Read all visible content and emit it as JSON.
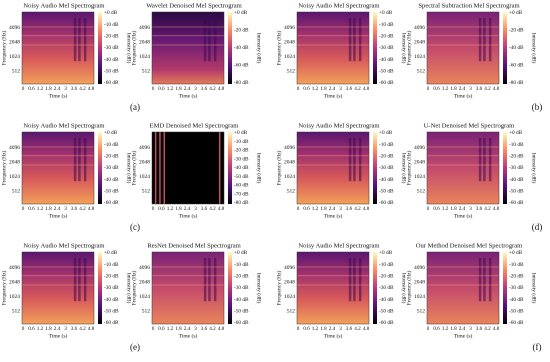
{
  "frequency_ticks": [
    "512",
    "1024",
    "2048",
    "4096"
  ],
  "time_ticks": [
    "0",
    "0.6",
    "1.2",
    "1.8",
    "2.4",
    "3",
    "3.6",
    "4.2",
    "4.8"
  ],
  "frequency_label": "Frequency (Hz)",
  "time_label": "Time (s)",
  "intensity_label": "Intensity (dB)",
  "figures": [
    {
      "label": "(a)",
      "panels": [
        {
          "title": "Noisy Audio Mel Spectrogram",
          "colorbar": [
            "+0 dB",
            "-10 dB",
            "-20 dB",
            "-30 dB",
            "-40 dB",
            "-50 dB",
            "-60 dB"
          ]
        },
        {
          "title": "Wavelet Denoised Mel Spectrogram",
          "colorbar": [
            "+0 dB",
            "-20 dB",
            "-40 dB",
            "-60 dB",
            "-80 dB"
          ]
        }
      ]
    },
    {
      "label": "(b)",
      "panels": [
        {
          "title": "Noisy Audio Mel Spectrogram",
          "colorbar": [
            "+0 dB",
            "-10 dB",
            "-20 dB",
            "-30 dB",
            "-40 dB",
            "-50 dB",
            "-60 dB"
          ]
        },
        {
          "title": "Spectral Subtraction Mel Spectrogram",
          "colorbar": [
            "+0 dB",
            "-20 dB",
            "-40 dB",
            "-60 dB",
            "-80 dB"
          ]
        }
      ]
    },
    {
      "label": "(c)",
      "panels": [
        {
          "title": "Noisy Audio Mel Spectrogram",
          "colorbar": [
            "+0 dB",
            "-10 dB",
            "-20 dB",
            "-30 dB",
            "-40 dB",
            "-50 dB",
            "-60 dB"
          ]
        },
        {
          "title": "EMD Denoised Mel Spectrogram",
          "colorbar": [
            "+0 dB",
            "-10 dB",
            "-20 dB",
            "-30 dB",
            "-40 dB",
            "-50 dB",
            "-60 dB",
            "-70 dB",
            "-80 dB"
          ]
        }
      ]
    },
    {
      "label": "(d)",
      "panels": [
        {
          "title": "Noisy Audio Mel Spectrogram",
          "colorbar": [
            "+0 dB",
            "-10 dB",
            "-20 dB",
            "-30 dB",
            "-40 dB",
            "-50 dB",
            "-60 dB"
          ]
        },
        {
          "title": "U-Net Denoised Mel Spectrogram",
          "colorbar": [
            "+0 dB",
            "-10 dB",
            "-20 dB",
            "-30 dB",
            "-40 dB",
            "-50 dB",
            "-60 dB"
          ]
        }
      ]
    },
    {
      "label": "(e)",
      "panels": [
        {
          "title": "Noisy Audio Mel Spectrogram",
          "colorbar": [
            "+0 dB",
            "-10 dB",
            "-20 dB",
            "-30 dB",
            "-40 dB",
            "-50 dB",
            "-60 dB"
          ]
        },
        {
          "title": "ResNet Denoised Mel Spectrogram",
          "colorbar": [
            "+0 dB",
            "-10 dB",
            "-20 dB",
            "-30 dB",
            "-40 dB",
            "-50 dB",
            "-60 dB"
          ]
        }
      ]
    },
    {
      "label": "(f)",
      "panels": [
        {
          "title": "Noisy Audio Mel Spectrogram",
          "colorbar": [
            "+0 dB",
            "-10 dB",
            "-20 dB",
            "-30 dB",
            "-40 dB",
            "-50 dB",
            "-60 dB"
          ]
        },
        {
          "title": "Our Method Denoised Mel Spectrogram",
          "colorbar": [
            "+0 dB",
            "-10 dB",
            "-20 dB",
            "-30 dB",
            "-40 dB",
            "-50 dB",
            "-60 dB"
          ]
        }
      ]
    }
  ]
}
